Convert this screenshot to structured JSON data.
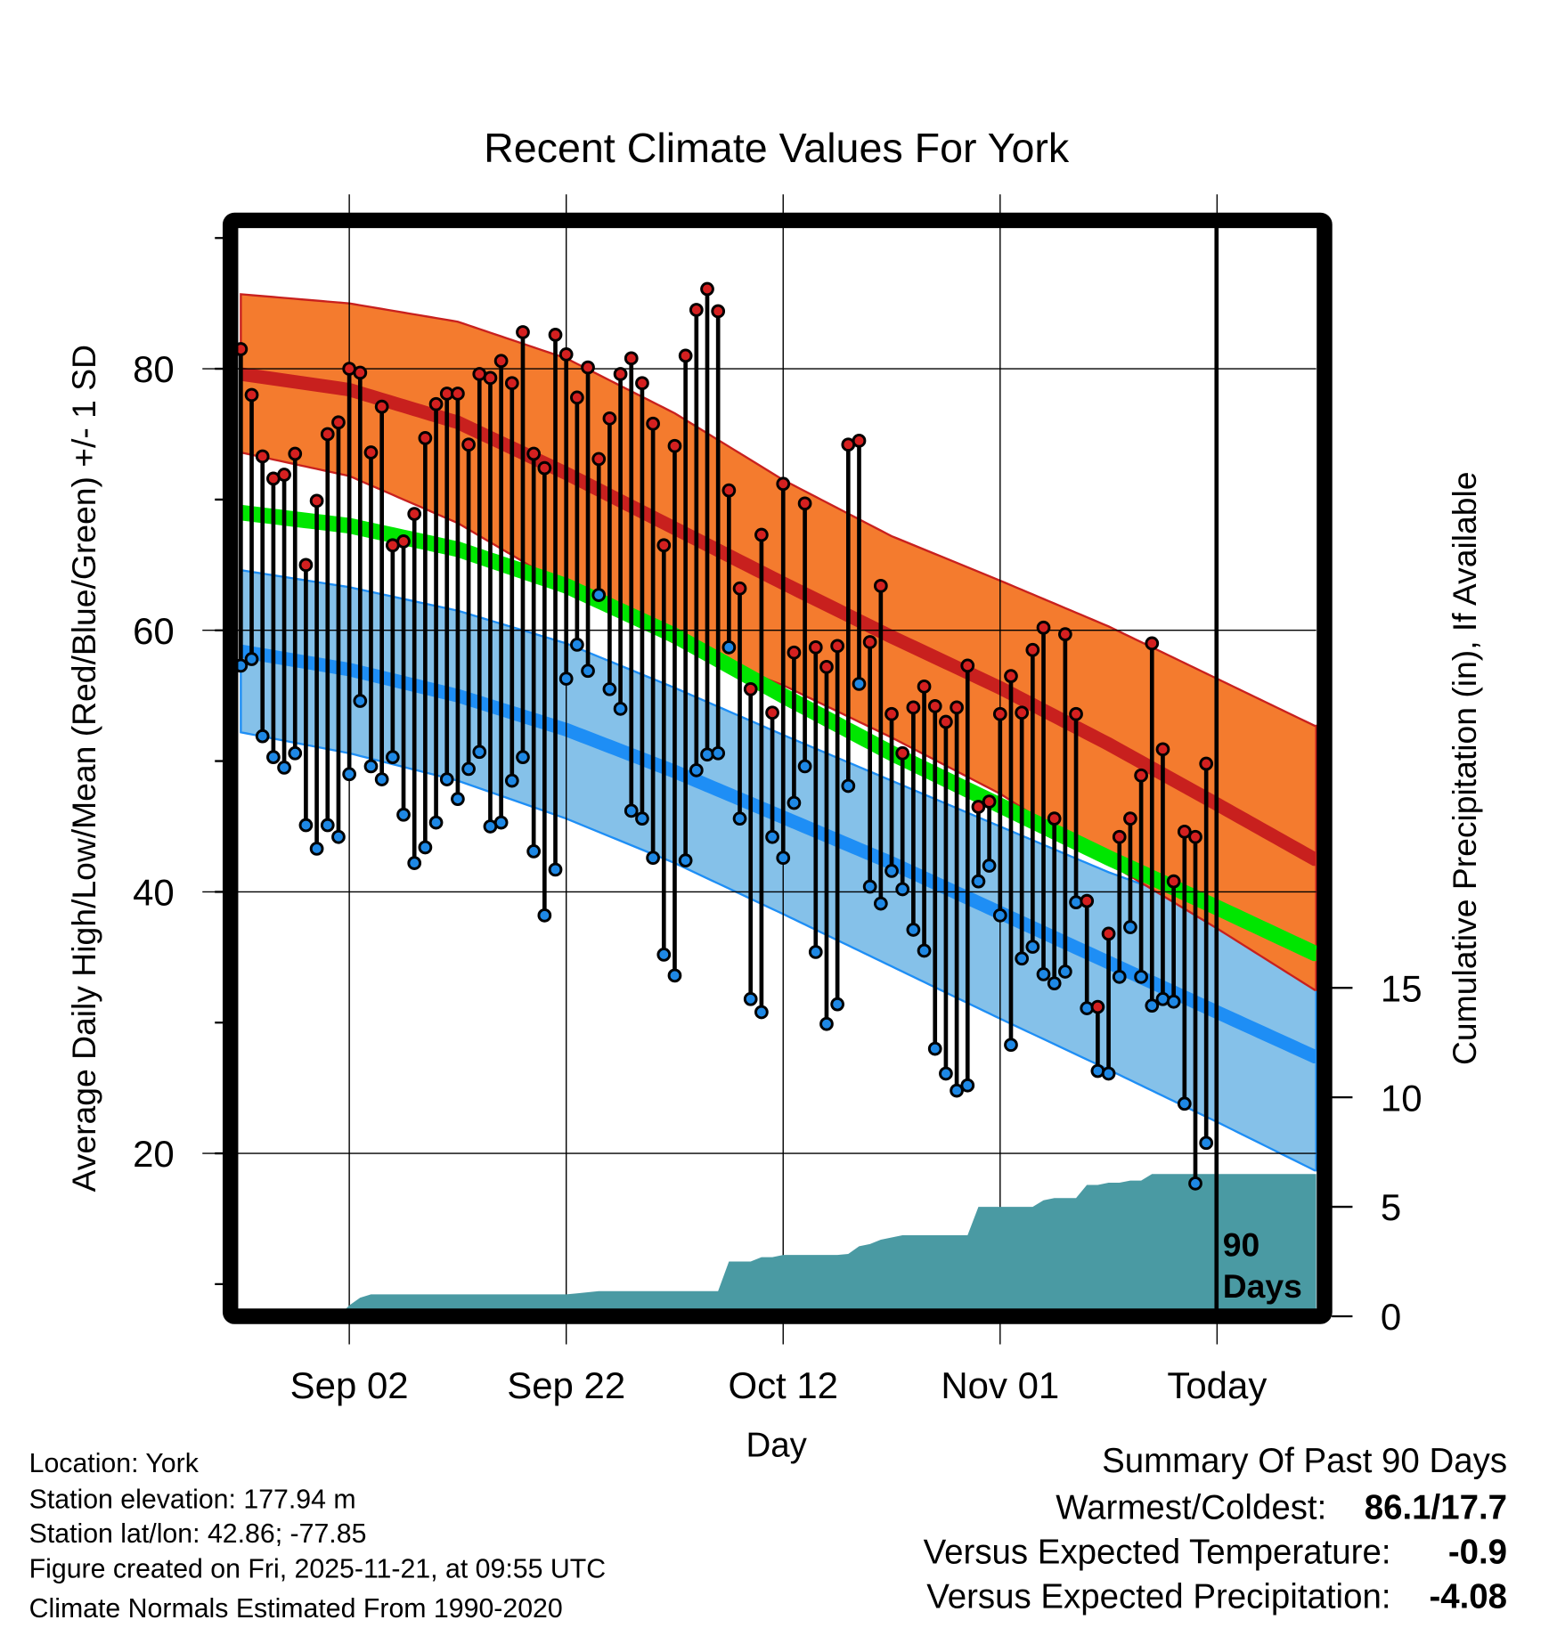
{
  "chart_data": {
    "type": "line",
    "title": "Recent Climate Values For York",
    "xlabel": "Day",
    "ylabel": "Average Daily High/Low/Mean (Red/Blue/Green) +/- 1 SD",
    "y2label": "Cumulative Precipitation (in), If Available",
    "ylim": [
      7,
      91
    ],
    "y2lim": [
      0,
      40
    ],
    "x_ticks": [
      "Sep 02",
      "Sep 22",
      "Oct 12",
      "Nov 01",
      "Today"
    ],
    "x_tick_days": [
      10,
      30,
      50,
      70,
      90
    ],
    "y_ticks": [
      "20",
      "40",
      "60",
      "80"
    ],
    "y2_ticks": [
      "0",
      "5",
      "10",
      "15"
    ],
    "today_label": [
      "90",
      "Days"
    ],
    "days_shown": 100,
    "observed": {
      "high": [
        81.5,
        78.0,
        73.3,
        71.6,
        71.9,
        73.5,
        65.0,
        69.9,
        75.0,
        75.9,
        80.0,
        79.7,
        73.6,
        77.1,
        66.5,
        66.8,
        68.9,
        74.7,
        77.3,
        78.1,
        78.1,
        74.2,
        79.6,
        79.3,
        80.6,
        78.9,
        82.8,
        73.5,
        72.4,
        82.6,
        81.1,
        77.8,
        80.1,
        73.1,
        76.2,
        79.6,
        80.8,
        78.9,
        75.8,
        66.5,
        74.1,
        81.0,
        84.5,
        86.1,
        84.4,
        70.7,
        63.2,
        55.5,
        67.3,
        53.7,
        71.2,
        58.3,
        69.7,
        58.7,
        57.2,
        58.8,
        74.2,
        74.5,
        59.1,
        63.4,
        53.6,
        50.6,
        54.1,
        55.7,
        54.2,
        53.0,
        54.1,
        57.3,
        46.5,
        46.9,
        53.6,
        56.5,
        53.7,
        58.5,
        60.2,
        45.6,
        59.7,
        53.6,
        39.3,
        31.2,
        36.8,
        44.2,
        45.6,
        48.9,
        59.0,
        50.9,
        40.8,
        44.6,
        44.2,
        49.8
      ],
      "low": [
        57.3,
        57.8,
        51.9,
        50.3,
        49.5,
        50.6,
        45.1,
        43.3,
        45.1,
        44.2,
        49.0,
        54.6,
        49.6,
        48.6,
        50.3,
        45.9,
        42.2,
        43.4,
        45.3,
        48.6,
        47.1,
        49.4,
        50.7,
        45.0,
        45.3,
        48.5,
        50.3,
        43.1,
        38.2,
        41.7,
        56.3,
        58.9,
        56.9,
        62.7,
        55.5,
        54.0,
        46.2,
        45.6,
        42.6,
        35.2,
        33.6,
        42.4,
        49.3,
        50.5,
        50.6,
        58.7,
        45.6,
        31.8,
        30.8,
        44.2,
        42.6,
        46.8,
        49.6,
        35.4,
        29.9,
        31.4,
        48.1,
        55.9,
        40.4,
        39.1,
        41.6,
        40.2,
        37.1,
        35.5,
        28.0,
        26.1,
        24.8,
        25.2,
        40.8,
        42.0,
        38.2,
        28.3,
        34.9,
        35.8,
        33.7,
        33.0,
        33.9,
        39.2,
        31.1,
        26.3,
        26.1,
        33.5,
        37.3,
        33.5,
        31.3,
        31.8,
        31.6,
        23.8,
        17.7,
        20.8
      ]
    },
    "normals_knot_days": [
      0,
      10,
      20,
      30,
      40,
      50,
      60,
      70,
      80,
      90,
      99
    ],
    "normals": {
      "high_plus_sd": [
        85.7,
        85.0,
        83.6,
        80.8,
        76.6,
        71.5,
        67.2,
        63.8,
        60.3,
        56.3,
        52.7
      ],
      "high_mean": [
        79.6,
        78.4,
        75.9,
        72.0,
        67.8,
        63.6,
        59.5,
        55.6,
        51.3,
        46.7,
        42.5
      ],
      "high_minus_sd": [
        73.6,
        71.8,
        68.2,
        63.3,
        59.0,
        55.8,
        51.8,
        47.5,
        42.2,
        37.2,
        32.5
      ],
      "mean": [
        69.0,
        68.0,
        66.2,
        63.4,
        59.6,
        55.0,
        50.6,
        46.6,
        42.6,
        38.8,
        35.3
      ],
      "low_plus_sd": [
        64.6,
        63.3,
        61.5,
        59.0,
        55.6,
        52.0,
        48.5,
        45.0,
        41.5,
        38.5,
        36.5
      ],
      "low_mean": [
        58.4,
        57.0,
        55.0,
        52.4,
        49.2,
        45.7,
        42.2,
        38.4,
        34.6,
        30.8,
        27.4
      ],
      "low_minus_sd": [
        52.2,
        50.6,
        48.5,
        45.6,
        42.2,
        38.3,
        34.3,
        30.3,
        26.4,
        22.4,
        18.7
      ]
    },
    "precip_cumulative": [
      0,
      0,
      0,
      0,
      0,
      0,
      0,
      0,
      0,
      0,
      0.5,
      0.85,
      1.0,
      1.0,
      1.0,
      1.0,
      1.0,
      1.0,
      1.0,
      1.0,
      1.0,
      1.0,
      1.0,
      1.0,
      1.0,
      1.0,
      1.0,
      1.0,
      1.0,
      1.0,
      1.0,
      1.05,
      1.1,
      1.15,
      1.15,
      1.15,
      1.15,
      1.15,
      1.15,
      1.15,
      1.15,
      1.15,
      1.15,
      1.15,
      1.15,
      2.5,
      2.5,
      2.5,
      2.7,
      2.7,
      2.8,
      2.8,
      2.8,
      2.8,
      2.8,
      2.8,
      2.85,
      3.2,
      3.3,
      3.5,
      3.6,
      3.7,
      3.7,
      3.7,
      3.7,
      3.7,
      3.7,
      3.7,
      5.0,
      5.0,
      5.0,
      5.0,
      5.0,
      5.0,
      5.3,
      5.4,
      5.4,
      5.4,
      6.0,
      6.0,
      6.1,
      6.1,
      6.2,
      6.2,
      6.5,
      6.5,
      6.5,
      6.5,
      6.5,
      6.5,
      6.5,
      6.5,
      6.5,
      6.5,
      6.5,
      6.5,
      6.5,
      6.5,
      6.5,
      6.5
    ],
    "colors": {
      "high_band": "#f47b2e",
      "high_line": "#c8201e",
      "low_band": "#85c1e9",
      "low_line": "#1e8ef5",
      "mean_line": "#00e600",
      "precip": "#4a9aa3",
      "high_dot": "#d42020",
      "low_dot": "#1e88e5"
    }
  },
  "footer": {
    "location": "Location: York",
    "elevation": "Station elevation: 177.94 m",
    "latlon": "Station lat/lon: 42.86; -77.85",
    "created": "Figure created on Fri, 2025-11-21, at 09:55 UTC",
    "normals": "Climate Normals Estimated From 1990-2020"
  },
  "summary": {
    "title": "Summary Of Past 90 Days",
    "warmest_label": "Warmest/Coldest:",
    "warmest_value": "86.1/17.7",
    "temp_label": "Versus Expected Temperature:",
    "temp_value": "-0.9",
    "precip_label": "Versus Expected Precipitation:",
    "precip_value": "-4.08",
    "temp_color": "#1e88e5",
    "precip_color": "#a0522d"
  }
}
